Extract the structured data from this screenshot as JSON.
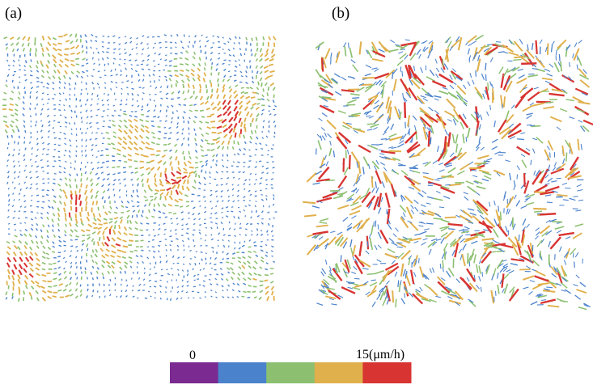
{
  "panels": [
    {
      "label": "(a)"
    },
    {
      "label": "(b)"
    }
  ],
  "colorbar": {
    "min_label": "0",
    "max_label": "15(μm/h)",
    "colors": [
      "#7a2a90",
      "#4a82cc",
      "#8cc070",
      "#e0b04c",
      "#d83432"
    ]
  }
}
